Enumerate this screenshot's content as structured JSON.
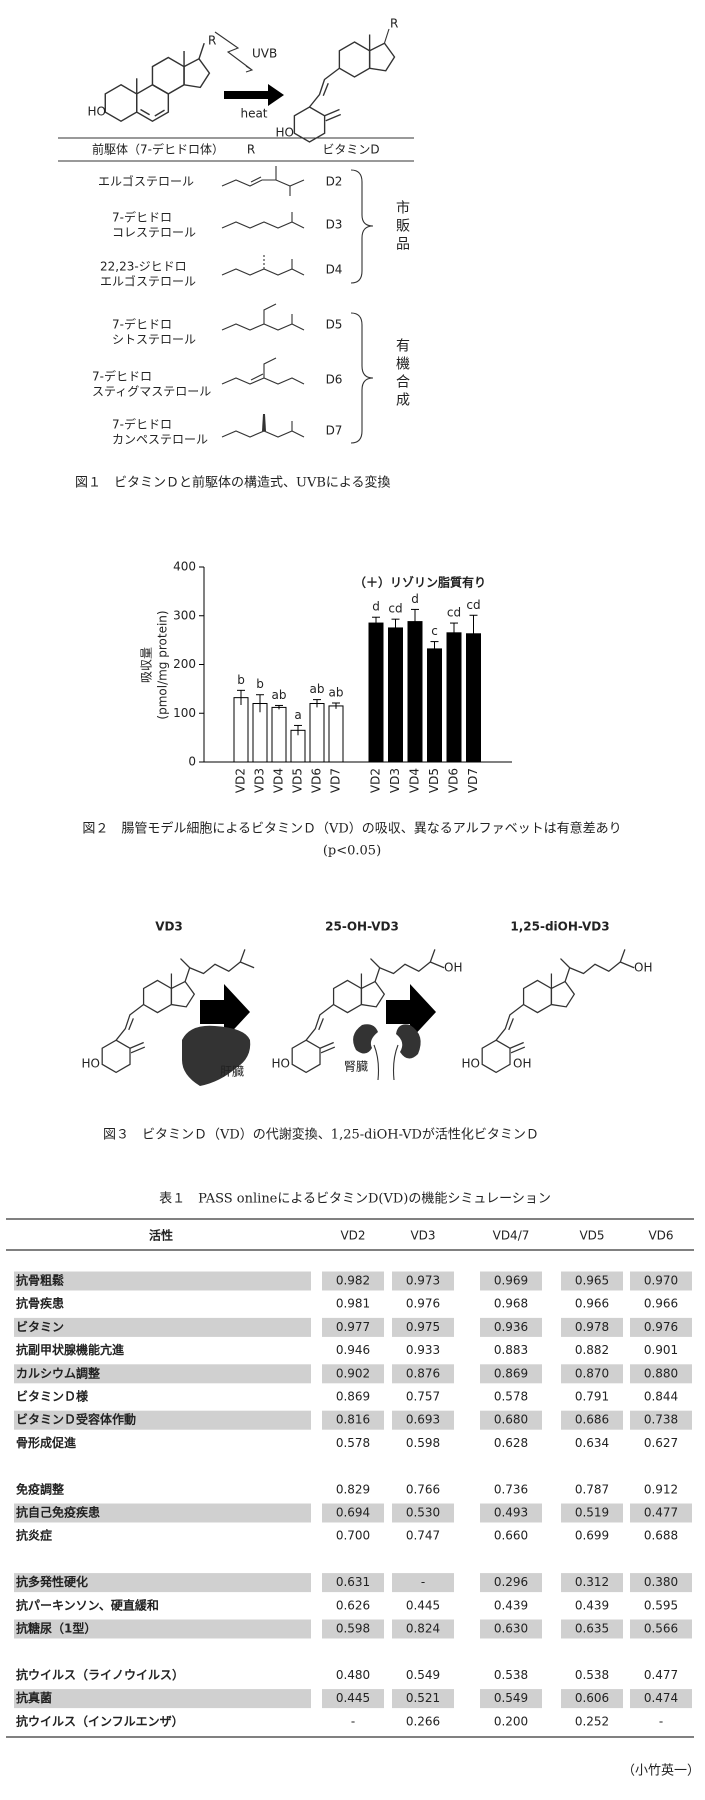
{
  "figure1": {
    "uvb": "UVB",
    "heat": "heat",
    "r": "R",
    "ho": "HO",
    "header": [
      "前駆体（7-デヒドロ体）",
      "R",
      "ビタミンD"
    ],
    "rows": [
      {
        "precursor": [
          "エルゴステロール"
        ],
        "vitamin": "D2"
      },
      {
        "precursor": [
          "7-デヒドロ",
          "コレステロール"
        ],
        "vitamin": "D3"
      },
      {
        "precursor": [
          "22,23-ジヒドロ",
          "エルゴステロール"
        ],
        "vitamin": "D4"
      },
      {
        "precursor": [
          "7-デヒドロ",
          "シトステロール"
        ],
        "vitamin": "D5"
      },
      {
        "precursor": [
          "7-デヒドロ",
          "スティグマステロール"
        ],
        "vitamin": "D6"
      },
      {
        "precursor": [
          "7-デヒドロ",
          "カンペステロール"
        ],
        "vitamin": "D7"
      }
    ],
    "groups": [
      "市販品",
      "有機合成"
    ],
    "caption": "図１　ビタミンＤと前駆体の構造式、UVBによる変換"
  },
  "chart_data": {
    "type": "bar",
    "ylabel": [
      "吸収量",
      "(pmol/mg protein)"
    ],
    "ylim": [
      0,
      400
    ],
    "yticks": [
      0,
      100,
      200,
      300,
      400
    ],
    "annotation": "（＋）リゾリン脂質有り",
    "groups": [
      {
        "color": "#ffffff",
        "categories": [
          "VD2",
          "VD3",
          "VD4",
          "VD5",
          "VD6",
          "VD7"
        ],
        "values": [
          132,
          120,
          112,
          65,
          120,
          115
        ],
        "errors": [
          15,
          18,
          4,
          10,
          8,
          6
        ],
        "letters": [
          "b",
          "b",
          "ab",
          "a",
          "ab",
          "ab"
        ]
      },
      {
        "color": "#000000",
        "categories": [
          "VD2",
          "VD3",
          "VD4",
          "VD5",
          "VD6",
          "VD7"
        ],
        "values": [
          285,
          275,
          288,
          232,
          265,
          263
        ],
        "errors": [
          12,
          18,
          25,
          15,
          20,
          38
        ],
        "letters": [
          "d",
          "cd",
          "d",
          "c",
          "cd",
          "cd"
        ]
      }
    ],
    "caption": [
      "図２　腸管モデル細胞によるビタミンＤ（VD）の吸収、異なるアルファベットは有意差あり",
      "(p<0.05)"
    ]
  },
  "figure3": {
    "compounds": [
      "VD3",
      "25-OH-VD3",
      "1,25-diOH-VD3"
    ],
    "organs": [
      "肝臓",
      "腎臓"
    ],
    "ho": "HO",
    "oh": "OH",
    "caption": "図３　ビタミンＤ（VD）の代謝変換、1,25-diOH-VDが活性化ビタミンＤ"
  },
  "table": {
    "title": "表１　PASS onlineによるビタミンD(VD)の機能シミュレーション",
    "header": [
      "活性",
      "VD2",
      "VD3",
      "VD4/7",
      "VD5",
      "VD6"
    ],
    "sections": [
      [
        {
          "shade": true,
          "cells": [
            "抗骨粗鬆",
            "0.982",
            "0.973",
            "0.969",
            "0.965",
            "0.970"
          ]
        },
        {
          "shade": false,
          "cells": [
            "抗骨疾患",
            "0.981",
            "0.976",
            "0.968",
            "0.966",
            "0.966"
          ]
        },
        {
          "shade": true,
          "cells": [
            "ビタミン",
            "0.977",
            "0.975",
            "0.936",
            "0.978",
            "0.976"
          ]
        },
        {
          "shade": false,
          "cells": [
            "抗副甲状腺機能亢進",
            "0.946",
            "0.933",
            "0.883",
            "0.882",
            "0.901"
          ]
        },
        {
          "shade": true,
          "cells": [
            "カルシウム調整",
            "0.902",
            "0.876",
            "0.869",
            "0.870",
            "0.880"
          ]
        },
        {
          "shade": false,
          "cells": [
            "ビタミンＤ様",
            "0.869",
            "0.757",
            "0.578",
            "0.791",
            "0.844"
          ]
        },
        {
          "shade": true,
          "cells": [
            "ビタミンＤ受容体作動",
            "0.816",
            "0.693",
            "0.680",
            "0.686",
            "0.738"
          ]
        },
        {
          "shade": false,
          "cells": [
            "骨形成促進",
            "0.578",
            "0.598",
            "0.628",
            "0.634",
            "0.627"
          ]
        }
      ],
      [
        {
          "shade": false,
          "cells": [
            "免疫調整",
            "0.829",
            "0.766",
            "0.736",
            "0.787",
            "0.912"
          ]
        },
        {
          "shade": true,
          "cells": [
            "抗自己免疫疾患",
            "0.694",
            "0.530",
            "0.493",
            "0.519",
            "0.477"
          ]
        },
        {
          "shade": false,
          "cells": [
            "抗炎症",
            "0.700",
            "0.747",
            "0.660",
            "0.699",
            "0.688"
          ]
        }
      ],
      [
        {
          "shade": true,
          "cells": [
            "抗多発性硬化",
            "0.631",
            "-",
            "0.296",
            "0.312",
            "0.380"
          ]
        },
        {
          "shade": false,
          "cells": [
            "抗パーキンソン、硬直緩和",
            "0.626",
            "0.445",
            "0.439",
            "0.439",
            "0.595"
          ]
        },
        {
          "shade": true,
          "cells": [
            "抗糖尿（1型）",
            "0.598",
            "0.824",
            "0.630",
            "0.635",
            "0.566"
          ]
        }
      ],
      [
        {
          "shade": false,
          "cells": [
            "抗ウイルス（ライノウイルス）",
            "0.480",
            "0.549",
            "0.538",
            "0.538",
            "0.477"
          ]
        },
        {
          "shade": true,
          "cells": [
            "抗真菌",
            "0.445",
            "0.521",
            "0.549",
            "0.606",
            "0.474"
          ]
        },
        {
          "shade": false,
          "cells": [
            "抗ウイルス（インフルエンザ）",
            "-",
            "0.266",
            "0.200",
            "0.252",
            "-"
          ]
        }
      ]
    ]
  },
  "author": "（小竹英一）"
}
